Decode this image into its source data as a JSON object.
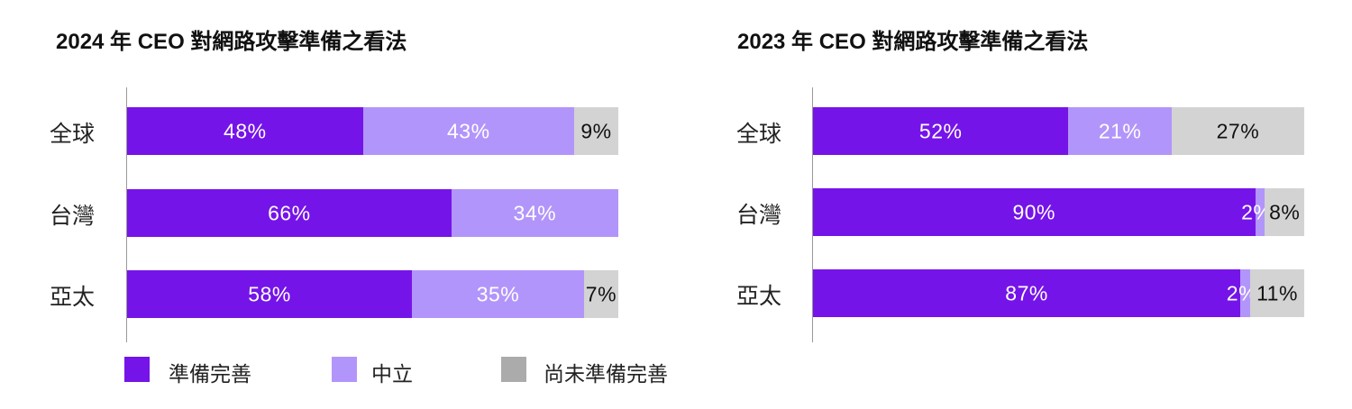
{
  "colors": {
    "ready": "#7514E8",
    "neutral": "#B295FA",
    "not_ready": "#D3D3D3",
    "legend_not_ready": "#ABABAB"
  },
  "legend": [
    "準備完善",
    "中立",
    "尚未準備完善"
  ],
  "chart_data": [
    {
      "type": "bar",
      "orientation": "horizontal",
      "stacked": true,
      "title": "2024 年 CEO 對網路攻擊準備之看法",
      "categories": [
        "全球",
        "台灣",
        "亞太"
      ],
      "series": [
        {
          "name": "準備完善",
          "values": [
            48,
            66,
            58
          ]
        },
        {
          "name": "中立",
          "values": [
            43,
            34,
            35
          ]
        },
        {
          "name": "尚未準備完善",
          "values": [
            9,
            0,
            7
          ]
        }
      ],
      "labels": [
        [
          "48%",
          "43%",
          "9%"
        ],
        [
          "66%",
          "34%",
          ""
        ],
        [
          "58%",
          "35%",
          "7%"
        ]
      ],
      "xlim": [
        0,
        100
      ]
    },
    {
      "type": "bar",
      "orientation": "horizontal",
      "stacked": true,
      "title": "2023 年 CEO 對網路攻擊準備之看法",
      "categories": [
        "全球",
        "台灣",
        "亞太"
      ],
      "series": [
        {
          "name": "準備完善",
          "values": [
            52,
            90,
            87
          ]
        },
        {
          "name": "中立",
          "values": [
            21,
            2,
            2
          ]
        },
        {
          "name": "尚未準備完善",
          "values": [
            27,
            8,
            11
          ]
        }
      ],
      "labels": [
        [
          "52%",
          "21%",
          "27%"
        ],
        [
          "90%",
          "2%",
          "8%"
        ],
        [
          "87%",
          "2%",
          "11%"
        ]
      ],
      "xlim": [
        0,
        100
      ]
    }
  ]
}
